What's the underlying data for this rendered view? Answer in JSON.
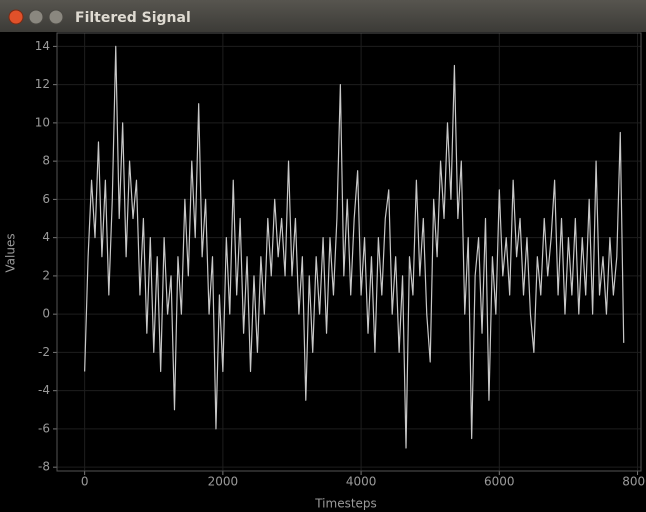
{
  "chart_data": {
    "type": "line",
    "title": "Filtered Signal",
    "x_label": "Timesteps",
    "y_label": "Values",
    "x": [
      0,
      50,
      100,
      150,
      200,
      250,
      300,
      350,
      400,
      450,
      500,
      550,
      600,
      650,
      700,
      750,
      800,
      850,
      900,
      950,
      1000,
      1050,
      1100,
      1150,
      1200,
      1250,
      1300,
      1350,
      1400,
      1450,
      1500,
      1550,
      1600,
      1650,
      1700,
      1750,
      1800,
      1850,
      1900,
      1950,
      2000,
      2050,
      2100,
      2150,
      2200,
      2250,
      2300,
      2350,
      2400,
      2450,
      2500,
      2550,
      2600,
      2650,
      2700,
      2750,
      2800,
      2850,
      2900,
      2950,
      3000,
      3050,
      3100,
      3150,
      3200,
      3250,
      3300,
      3350,
      3400,
      3450,
      3500,
      3550,
      3600,
      3650,
      3700,
      3750,
      3800,
      3850,
      3900,
      3950,
      4000,
      4050,
      4100,
      4150,
      4200,
      4250,
      4300,
      4350,
      4400,
      4450,
      4500,
      4550,
      4600,
      4650,
      4700,
      4750,
      4800,
      4850,
      4900,
      4950,
      5000,
      5050,
      5100,
      5150,
      5200,
      5250,
      5300,
      5350,
      5400,
      5450,
      5500,
      5550,
      5600,
      5650,
      5700,
      5750,
      5800,
      5850,
      5900,
      5950,
      6000,
      6050,
      6100,
      6150,
      6200,
      6250,
      6300,
      6350,
      6400,
      6450,
      6500,
      6550,
      6600,
      6650,
      6700,
      6750,
      6800,
      6850,
      6900,
      6950,
      7000,
      7050,
      7100,
      7150,
      7200,
      7250,
      7300,
      7350,
      7400,
      7450,
      7500,
      7550,
      7600,
      7650,
      7700,
      7750,
      7800
    ],
    "series": [
      {
        "name": "Filtered Signal",
        "color": "#c8c8c8",
        "values": [
          -3,
          3,
          7,
          4,
          9,
          3,
          7,
          1,
          6,
          14,
          5,
          10,
          3,
          8,
          5,
          7,
          1,
          5,
          -1,
          4,
          -2,
          3,
          -3,
          4,
          0,
          2,
          -5,
          3,
          0,
          6,
          2,
          8,
          4,
          11,
          3,
          6,
          0,
          3,
          -6,
          1,
          -3,
          4,
          0,
          7,
          1,
          5,
          -1,
          3,
          -3,
          2,
          -2,
          3,
          0,
          5,
          2,
          6,
          3,
          5,
          2,
          8,
          2,
          5,
          0,
          3,
          -4.5,
          2,
          -2,
          3,
          0,
          4,
          -1,
          4,
          1,
          5,
          12,
          2,
          6,
          1,
          5,
          7.5,
          1,
          4,
          -1,
          3,
          -2,
          4,
          1,
          5,
          6.5,
          0,
          3,
          -2,
          2,
          -7,
          3,
          1,
          7,
          2,
          5,
          0,
          -2.5,
          6,
          3,
          8,
          5,
          10,
          6,
          13,
          5,
          8,
          0,
          4,
          -6.5,
          2,
          4,
          -1,
          5,
          -4.5,
          3,
          0,
          6.5,
          2,
          4,
          1,
          7,
          3,
          5,
          1,
          4,
          0,
          -2,
          3,
          1,
          5,
          2,
          4,
          7,
          1,
          5,
          0,
          4,
          1,
          5,
          0,
          4,
          1,
          6,
          0,
          8,
          1,
          3,
          0,
          4,
          1,
          3,
          9.5,
          -1.5
        ]
      }
    ],
    "xlim": [
      -400,
      8050
    ],
    "ylim": [
      -8.2,
      14.7
    ],
    "xticks": [
      0,
      2000,
      4000,
      6000,
      8000
    ],
    "yticks": [
      -8,
      -6,
      -4,
      -2,
      0,
      2,
      4,
      6,
      8,
      10,
      12,
      14
    ],
    "grid": true
  }
}
